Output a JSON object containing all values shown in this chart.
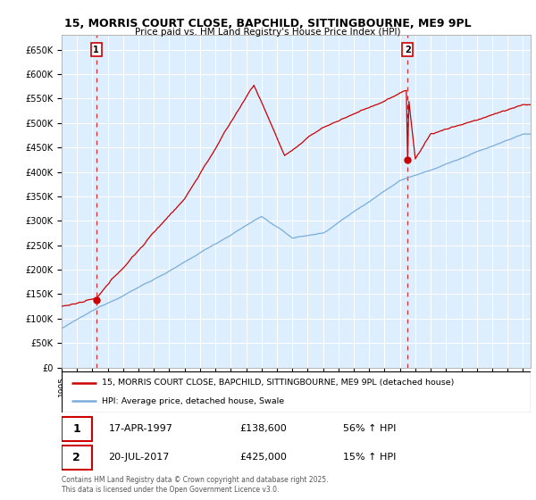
{
  "title": "15, MORRIS COURT CLOSE, BAPCHILD, SITTINGBOURNE, ME9 9PL",
  "subtitle": "Price paid vs. HM Land Registry's House Price Index (HPI)",
  "ylim": [
    0,
    680000
  ],
  "yticks": [
    0,
    50000,
    100000,
    150000,
    200000,
    250000,
    300000,
    350000,
    400000,
    450000,
    500000,
    550000,
    600000,
    650000
  ],
  "ytick_labels": [
    "£0",
    "£50K",
    "£100K",
    "£150K",
    "£200K",
    "£250K",
    "£300K",
    "£350K",
    "£400K",
    "£450K",
    "£500K",
    "£550K",
    "£600K",
    "£650K"
  ],
  "red_line_label": "15, MORRIS COURT CLOSE, BAPCHILD, SITTINGBOURNE, ME9 9PL (detached house)",
  "blue_line_label": "HPI: Average price, detached house, Swale",
  "point1_date": "17-APR-1997",
  "point1_price": 138600,
  "point2_date": "20-JUL-2017",
  "point2_price": 425000,
  "point1_hpi": "56% ↑ HPI",
  "point2_hpi": "15% ↑ HPI",
  "footnote": "Contains HM Land Registry data © Crown copyright and database right 2025.\nThis data is licensed under the Open Government Licence v3.0.",
  "red_color": "#cc0000",
  "blue_color": "#7aaddb",
  "dashed_color": "#cc0000",
  "grid_color": "#c8d8e8",
  "bg_color": "#ddeeff",
  "plot_bg": "#ddeeff"
}
